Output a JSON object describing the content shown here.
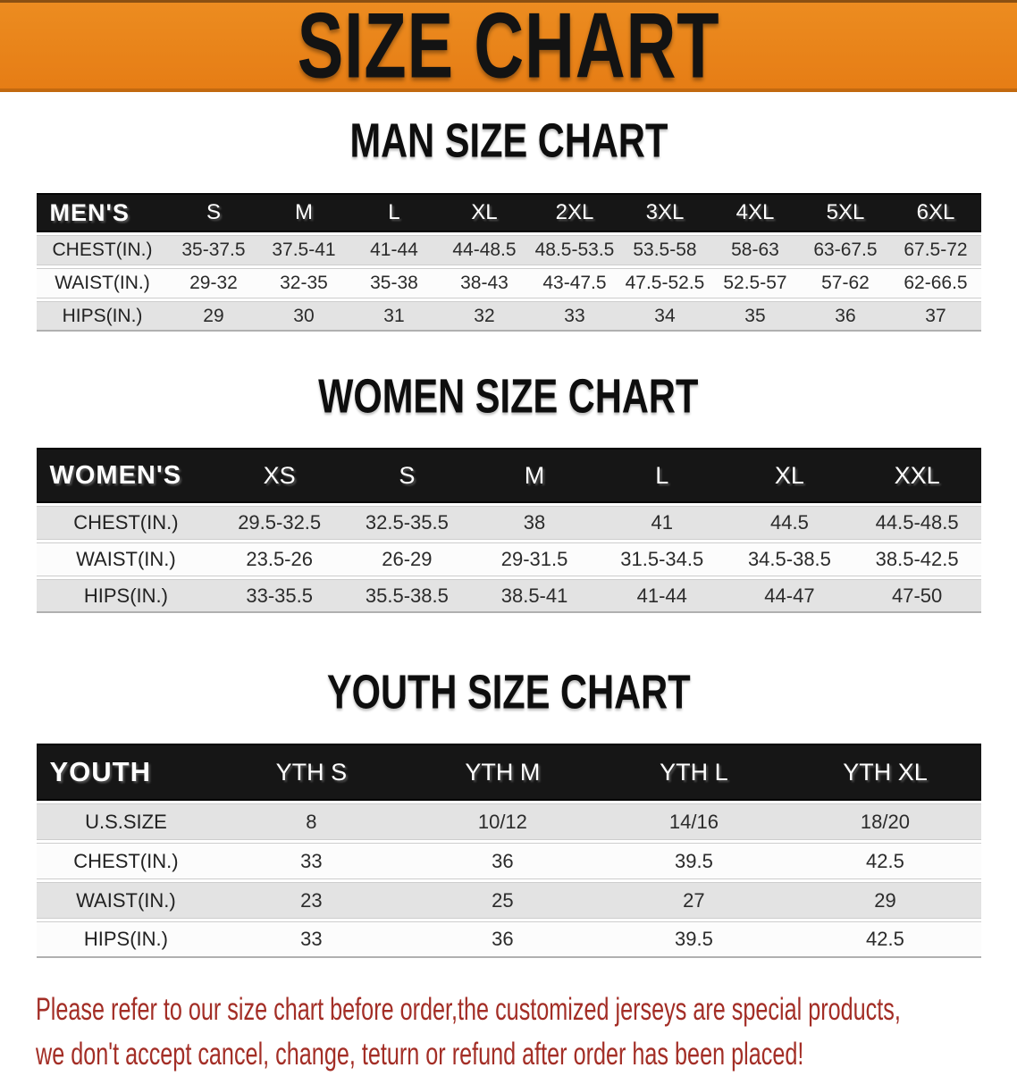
{
  "banner": {
    "title": "SIZE CHART",
    "bg_color": "#e8801c"
  },
  "sections": [
    {
      "id": "men",
      "heading": "MAN SIZE CHART",
      "group_label": "MEN'S",
      "columns": [
        "S",
        "M",
        "L",
        "XL",
        "2XL",
        "3XL",
        "4XL",
        "5XL",
        "6XL"
      ],
      "rows": [
        {
          "label": "CHEST(IN.)",
          "values": [
            "35-37.5",
            "37.5-41",
            "41-44",
            "44-48.5",
            "48.5-53.5",
            "53.5-58",
            "58-63",
            "63-67.5",
            "67.5-72"
          ]
        },
        {
          "label": "WAIST(IN.)",
          "values": [
            "29-32",
            "32-35",
            "35-38",
            "38-43",
            "43-47.5",
            "47.5-52.5",
            "52.5-57",
            "57-62",
            "62-66.5"
          ]
        },
        {
          "label": "HIPS(IN.)",
          "values": [
            "29",
            "30",
            "31",
            "32",
            "33",
            "34",
            "35",
            "36",
            "37"
          ]
        }
      ]
    },
    {
      "id": "women",
      "heading": "WOMEN SIZE CHART",
      "group_label": "WOMEN'S",
      "columns": [
        "XS",
        "S",
        "M",
        "L",
        "XL",
        "XXL"
      ],
      "rows": [
        {
          "label": "CHEST(IN.)",
          "values": [
            "29.5-32.5",
            "32.5-35.5",
            "38",
            "41",
            "44.5",
            "44.5-48.5"
          ]
        },
        {
          "label": "WAIST(IN.)",
          "values": [
            "23.5-26",
            "26-29",
            "29-31.5",
            "31.5-34.5",
            "34.5-38.5",
            "38.5-42.5"
          ]
        },
        {
          "label": "HIPS(IN.)",
          "values": [
            "33-35.5",
            "35.5-38.5",
            "38.5-41",
            "41-44",
            "44-47",
            "47-50"
          ]
        }
      ]
    },
    {
      "id": "youth",
      "heading": "YOUTH SIZE CHART",
      "group_label": "YOUTH",
      "columns": [
        "YTH S",
        "YTH M",
        "YTH L",
        "YTH XL"
      ],
      "rows": [
        {
          "label": "U.S.SIZE",
          "values": [
            "8",
            "10/12",
            "14/16",
            "18/20"
          ]
        },
        {
          "label": "CHEST(IN.)",
          "values": [
            "33",
            "36",
            "39.5",
            "42.5"
          ]
        },
        {
          "label": "WAIST(IN.)",
          "values": [
            "23",
            "25",
            "27",
            "29"
          ]
        },
        {
          "label": "HIPS(IN.)",
          "values": [
            "33",
            "36",
            "39.5",
            "42.5"
          ]
        }
      ]
    }
  ],
  "disclaimer": {
    "color": "#a32e26",
    "lines": [
      "Please refer to our size chart before order,the customized jerseys are special products,",
      "we don't accept cancel, change, teturn or refund after order has been placed!"
    ]
  }
}
